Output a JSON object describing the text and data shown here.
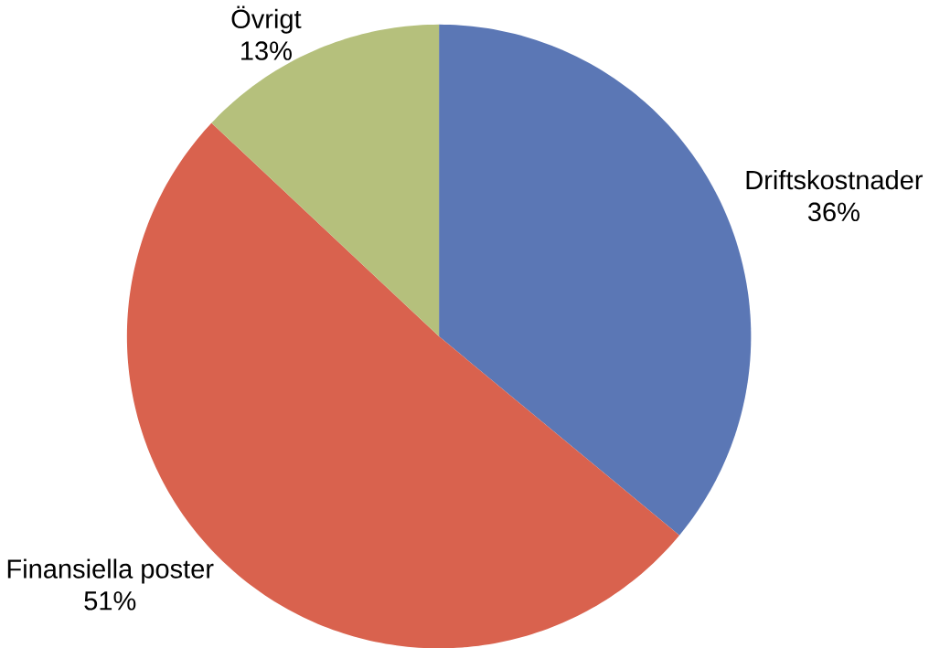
{
  "chart_data": {
    "type": "pie",
    "categories": [
      "Driftskostnader",
      "Finansiella poster",
      "Övrigt"
    ],
    "values": [
      36,
      51,
      13
    ],
    "value_labels": [
      "36%",
      "51%",
      "13%"
    ],
    "colors": [
      "#5b77b5",
      "#d9624e",
      "#b5c07c"
    ]
  }
}
